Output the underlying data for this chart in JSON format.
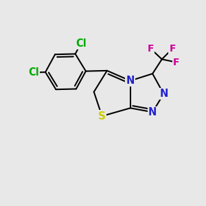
{
  "background_color": "#e8e8e8",
  "atom_colors": {
    "C": "#000000",
    "N": "#2222cc",
    "S": "#cccc00",
    "Cl": "#00aa00",
    "F": "#cc0099"
  },
  "bond_color": "#000000",
  "bond_width": 1.5,
  "font_size": 10.5,
  "xlim": [
    0,
    10
  ],
  "ylim": [
    0,
    10
  ]
}
